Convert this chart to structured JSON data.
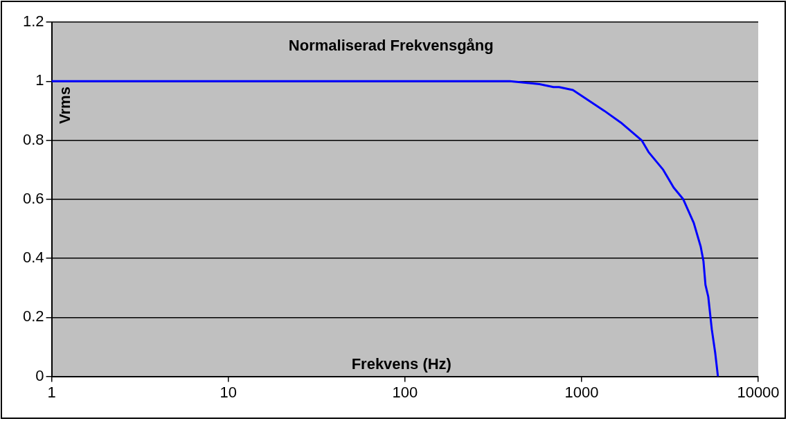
{
  "chart_data": {
    "type": "line",
    "title": "Normaliserad Frekvensgång",
    "xlabel": "Frekvens (Hz)",
    "ylabel": "Vrms",
    "log": "x",
    "grid": "y",
    "legend": false,
    "marker": "none",
    "line_style": "solid",
    "xlim": [
      1,
      10000
    ],
    "xticks": [
      1,
      10,
      100,
      1000,
      10000
    ],
    "ylim": [
      0,
      1.2
    ],
    "yticks": [
      0,
      0.2,
      0.4,
      0.6,
      0.8,
      1,
      1.2
    ],
    "series": [
      {
        "color": "#0000ff",
        "x": [
          1,
          392,
          578,
          693,
          745,
          893,
          1062,
          1342,
          1667,
          2188,
          2394,
          2897,
          3318,
          3764,
          4315,
          4723,
          4898,
          5027,
          5214,
          5458,
          5707,
          5914
        ],
        "values": [
          1,
          1,
          0.99,
          0.98,
          0.98,
          0.97,
          0.94,
          0.9,
          0.86,
          0.8,
          0.76,
          0.7,
          0.64,
          0.6,
          0.52,
          0.44,
          0.39,
          0.31,
          0.27,
          0.16,
          0.08,
          0
        ]
      }
    ]
  }
}
